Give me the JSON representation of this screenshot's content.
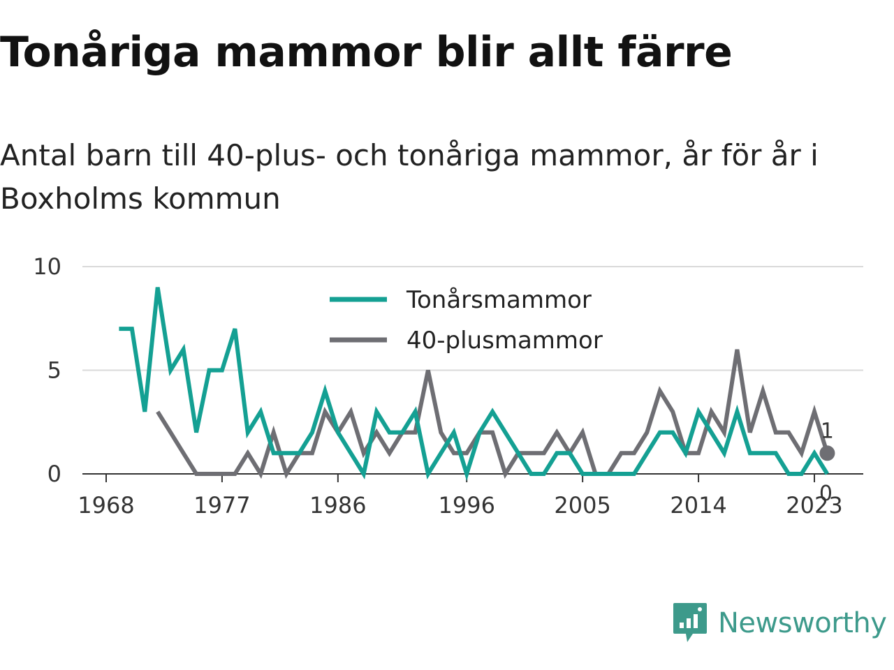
{
  "title": "Tonåriga mammor blir allt färre",
  "subtitle": "Antal barn till 40-plus- och tonåriga mammor, år för år i Boxholms kommun",
  "brand": {
    "name": "Newsworthy",
    "icon": "bar-chart-bubble-icon",
    "color": "#3d9a8b"
  },
  "chart_data": {
    "type": "line",
    "x_ticks": [
      1968,
      1977,
      1986,
      1996,
      2005,
      2014,
      2023
    ],
    "y_ticks": [
      0,
      5,
      10
    ],
    "xlim": [
      1967,
      2027
    ],
    "ylim": [
      0,
      10
    ],
    "grid": true,
    "legend_position": "top-center",
    "series": [
      {
        "name": "Tonårsmammor",
        "color": "#14a093",
        "x": [
          1969,
          1970,
          1971,
          1972,
          1973,
          1974,
          1975,
          1976,
          1977,
          1978,
          1979,
          1980,
          1981,
          1982,
          1983,
          1984,
          1985,
          1986,
          1987,
          1988,
          1989,
          1990,
          1991,
          1992,
          1993,
          1994,
          1995,
          1996,
          1997,
          1998,
          1999,
          2000,
          2001,
          2002,
          2003,
          2004,
          2005,
          2006,
          2007,
          2008,
          2009,
          2010,
          2011,
          2012,
          2013,
          2014,
          2015,
          2016,
          2017,
          2018,
          2019,
          2020,
          2021,
          2022,
          2023,
          2024
        ],
        "values": [
          7,
          7,
          3,
          9,
          5,
          6,
          2,
          5,
          5,
          7,
          2,
          3,
          1,
          1,
          1,
          2,
          4,
          2,
          1,
          0,
          3,
          2,
          2,
          3,
          0,
          1,
          2,
          0,
          2,
          3,
          2,
          1,
          0,
          0,
          1,
          1,
          0,
          0,
          0,
          0,
          0,
          1,
          2,
          2,
          1,
          3,
          2,
          1,
          3,
          1,
          1,
          1,
          0,
          0,
          1,
          0
        ],
        "end_label": "0"
      },
      {
        "name": "40-plusmammor",
        "color": "#6e6e73",
        "x": [
          1972,
          1973,
          1974,
          1975,
          1976,
          1977,
          1978,
          1979,
          1980,
          1981,
          1982,
          1983,
          1984,
          1985,
          1986,
          1987,
          1988,
          1989,
          1990,
          1991,
          1992,
          1993,
          1994,
          1995,
          1996,
          1997,
          1998,
          1999,
          2000,
          2001,
          2002,
          2003,
          2004,
          2005,
          2006,
          2007,
          2008,
          2009,
          2010,
          2011,
          2012,
          2013,
          2014,
          2015,
          2016,
          2017,
          2018,
          2019,
          2020,
          2021,
          2022,
          2023,
          2024
        ],
        "values": [
          3,
          2,
          1,
          0,
          0,
          0,
          0,
          1,
          0,
          2,
          0,
          1,
          1,
          3,
          2,
          3,
          1,
          2,
          1,
          2,
          2,
          5,
          2,
          1,
          1,
          2,
          2,
          0,
          1,
          1,
          1,
          2,
          1,
          2,
          0,
          0,
          1,
          1,
          2,
          4,
          3,
          1,
          1,
          3,
          2,
          6,
          2,
          4,
          2,
          2,
          1,
          3,
          1
        ],
        "end_label": "1"
      }
    ]
  }
}
